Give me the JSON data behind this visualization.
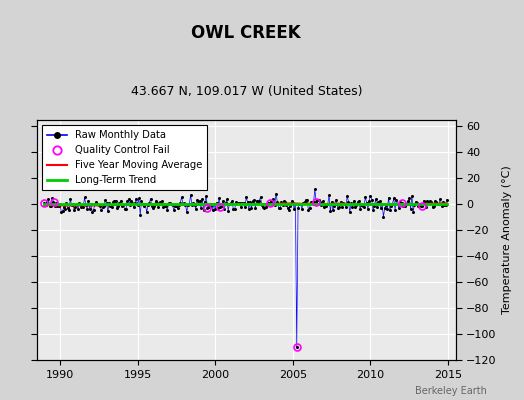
{
  "title": "OWL CREEK",
  "subtitle": "43.667 N, 109.017 W (United States)",
  "ylabel": "Temperature Anomaly (°C)",
  "watermark": "Berkeley Earth",
  "xlim": [
    1988.5,
    2015.5
  ],
  "ylim": [
    -120,
    65
  ],
  "yticks": [
    -120,
    -100,
    -80,
    -60,
    -40,
    -20,
    0,
    20,
    40,
    60
  ],
  "xticks": [
    1990,
    1995,
    2000,
    2005,
    2010,
    2015
  ],
  "fig_bg_color": "#d4d4d4",
  "plot_bg_color": "#eaeaea",
  "grid_color": "#ffffff",
  "raw_line_color": "#0000ff",
  "raw_marker_color": "#000000",
  "qc_color": "#ff00ff",
  "moving_avg_color": "#ff0000",
  "trend_color": "#00cc00",
  "spike_year": 2005.25,
  "spike_value": -110,
  "trend_slope": 0.0,
  "trend_intercept": 0.3,
  "noise_std": 3.0,
  "seed": 42
}
